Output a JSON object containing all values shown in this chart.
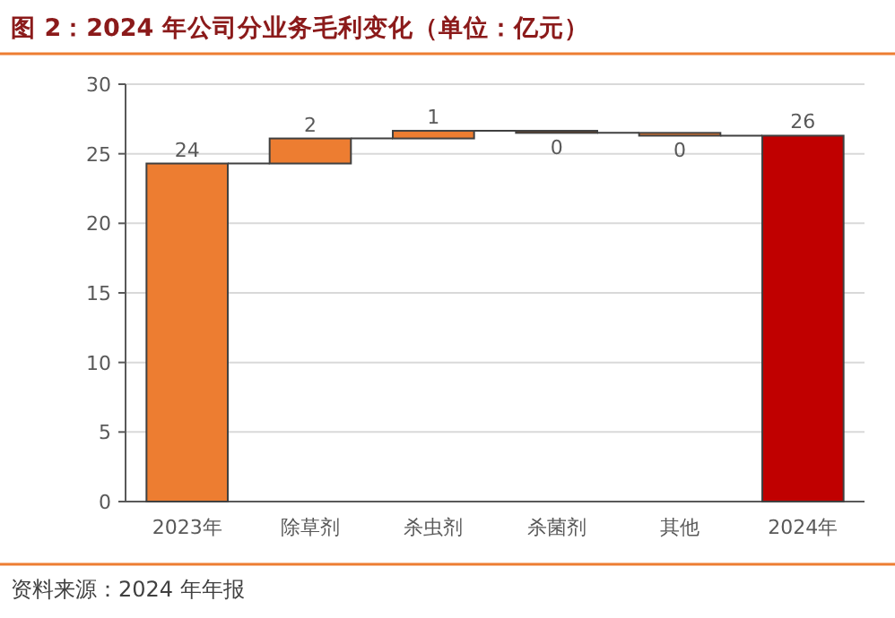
{
  "chart_data": {
    "type": "bar",
    "title": "图 2：2024 年公司分业务毛利变化（单位：亿元）",
    "categories": [
      "2023年",
      "除草剂",
      "杀虫剂",
      "杀菌剂",
      "其他",
      "2024年"
    ],
    "values": [
      24.3,
      1.8,
      0.55,
      -0.15,
      -0.2,
      26.3
    ],
    "base": [
      0,
      24.3,
      26.1,
      26.65,
      26.5,
      0
    ],
    "colors": [
      "#ed7d31",
      "#ed7d31",
      "#ed7d31",
      "#843c0c",
      "#ed7d31",
      "#c00000"
    ],
    "value_labels": [
      "24",
      "2",
      "1",
      "0",
      "0",
      "26"
    ],
    "ylim": [
      0,
      30
    ],
    "yticks": [
      0,
      5,
      10,
      15,
      20,
      25,
      30
    ],
    "grid": "y",
    "annotations": [
      "资料来源：2024 年年报"
    ]
  }
}
